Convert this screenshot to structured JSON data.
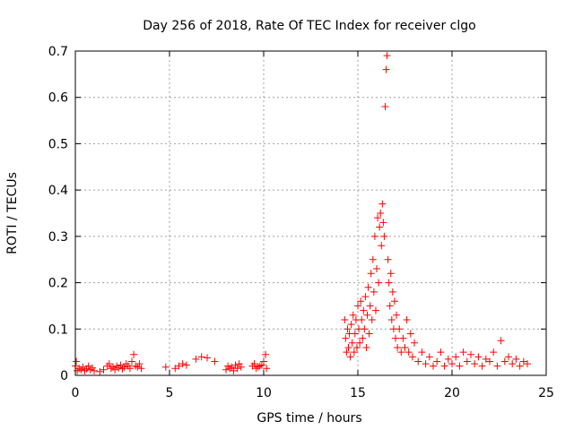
{
  "chart_data": {
    "type": "scatter",
    "title": "Day 256 of 2018, Rate Of TEC Index for receiver clgo",
    "xlabel": "GPS time / hours",
    "ylabel": "ROTI / TECUs",
    "xlim": [
      0,
      25
    ],
    "ylim": [
      0,
      0.7
    ],
    "x_ticks": [
      0,
      5,
      10,
      15,
      20,
      25
    ],
    "y_ticks": [
      0,
      0.1,
      0.2,
      0.3,
      0.4,
      0.5,
      0.6,
      0.7
    ],
    "x_tick_labels": [
      "0",
      "5",
      "10",
      "15",
      "20",
      "25"
    ],
    "y_tick_labels": [
      "0",
      "0.1",
      "0.2",
      "0.3",
      "0.4",
      "0.5",
      "0.6",
      "0.7"
    ],
    "grid": true,
    "marker": "+",
    "color": "#ff0000",
    "series": [
      {
        "name": "ROTI",
        "points": [
          [
            0.0,
            0.02
          ],
          [
            0.05,
            0.03
          ],
          [
            0.1,
            0.01
          ],
          [
            0.2,
            0.015
          ],
          [
            0.3,
            0.012
          ],
          [
            0.4,
            0.018
          ],
          [
            0.5,
            0.01
          ],
          [
            0.6,
            0.014
          ],
          [
            0.7,
            0.02
          ],
          [
            0.8,
            0.012
          ],
          [
            0.9,
            0.016
          ],
          [
            1.0,
            0.01
          ],
          [
            1.3,
            0.008
          ],
          [
            1.5,
            0.012
          ],
          [
            1.7,
            0.02
          ],
          [
            1.8,
            0.025
          ],
          [
            1.9,
            0.015
          ],
          [
            2.0,
            0.018
          ],
          [
            2.1,
            0.012
          ],
          [
            2.2,
            0.02
          ],
          [
            2.3,
            0.016
          ],
          [
            2.4,
            0.022
          ],
          [
            2.5,
            0.014
          ],
          [
            2.6,
            0.018
          ],
          [
            2.7,
            0.025
          ],
          [
            2.8,
            0.02
          ],
          [
            2.9,
            0.015
          ],
          [
            3.0,
            0.03
          ],
          [
            3.1,
            0.045
          ],
          [
            3.2,
            0.02
          ],
          [
            3.3,
            0.018
          ],
          [
            3.4,
            0.025
          ],
          [
            3.5,
            0.015
          ],
          [
            4.8,
            0.018
          ],
          [
            5.3,
            0.015
          ],
          [
            5.5,
            0.02
          ],
          [
            5.7,
            0.025
          ],
          [
            5.9,
            0.022
          ],
          [
            6.4,
            0.035
          ],
          [
            6.7,
            0.04
          ],
          [
            7.0,
            0.038
          ],
          [
            7.4,
            0.03
          ],
          [
            8.0,
            0.012
          ],
          [
            8.1,
            0.02
          ],
          [
            8.2,
            0.015
          ],
          [
            8.3,
            0.018
          ],
          [
            8.4,
            0.01
          ],
          [
            8.5,
            0.022
          ],
          [
            8.6,
            0.015
          ],
          [
            8.7,
            0.025
          ],
          [
            8.8,
            0.018
          ],
          [
            9.4,
            0.02
          ],
          [
            9.5,
            0.025
          ],
          [
            9.6,
            0.015
          ],
          [
            9.7,
            0.018
          ],
          [
            9.8,
            0.02
          ],
          [
            9.9,
            0.022
          ],
          [
            10.0,
            0.03
          ],
          [
            10.1,
            0.045
          ],
          [
            10.15,
            0.015
          ],
          [
            14.3,
            0.12
          ],
          [
            14.35,
            0.08
          ],
          [
            14.4,
            0.05
          ],
          [
            14.45,
            0.1
          ],
          [
            14.5,
            0.06
          ],
          [
            14.55,
            0.09
          ],
          [
            14.6,
            0.04
          ],
          [
            14.65,
            0.11
          ],
          [
            14.7,
            0.07
          ],
          [
            14.75,
            0.13
          ],
          [
            14.8,
            0.05
          ],
          [
            14.85,
            0.09
          ],
          [
            14.9,
            0.12
          ],
          [
            14.95,
            0.06
          ],
          [
            15.0,
            0.15
          ],
          [
            15.05,
            0.1
          ],
          [
            15.1,
            0.07
          ],
          [
            15.15,
            0.16
          ],
          [
            15.2,
            0.12
          ],
          [
            15.25,
            0.08
          ],
          [
            15.3,
            0.14
          ],
          [
            15.35,
            0.1
          ],
          [
            15.4,
            0.17
          ],
          [
            15.45,
            0.06
          ],
          [
            15.5,
            0.13
          ],
          [
            15.55,
            0.19
          ],
          [
            15.6,
            0.09
          ],
          [
            15.65,
            0.15
          ],
          [
            15.7,
            0.22
          ],
          [
            15.75,
            0.12
          ],
          [
            15.8,
            0.25
          ],
          [
            15.85,
            0.18
          ],
          [
            15.9,
            0.3
          ],
          [
            15.95,
            0.14
          ],
          [
            16.0,
            0.23
          ],
          [
            16.05,
            0.34
          ],
          [
            16.1,
            0.2
          ],
          [
            16.15,
            0.32
          ],
          [
            16.2,
            0.35
          ],
          [
            16.25,
            0.28
          ],
          [
            16.3,
            0.37
          ],
          [
            16.35,
            0.33
          ],
          [
            16.4,
            0.3
          ],
          [
            16.45,
            0.58
          ],
          [
            16.5,
            0.66
          ],
          [
            16.55,
            0.69
          ],
          [
            16.6,
            0.25
          ],
          [
            16.65,
            0.2
          ],
          [
            16.7,
            0.15
          ],
          [
            16.75,
            0.22
          ],
          [
            16.8,
            0.12
          ],
          [
            16.85,
            0.18
          ],
          [
            16.9,
            0.1
          ],
          [
            16.95,
            0.16
          ],
          [
            17.0,
            0.08
          ],
          [
            17.05,
            0.13
          ],
          [
            17.1,
            0.06
          ],
          [
            17.2,
            0.1
          ],
          [
            17.3,
            0.05
          ],
          [
            17.4,
            0.08
          ],
          [
            17.5,
            0.06
          ],
          [
            17.6,
            0.12
          ],
          [
            17.7,
            0.05
          ],
          [
            17.8,
            0.09
          ],
          [
            17.9,
            0.04
          ],
          [
            18.0,
            0.07
          ],
          [
            18.2,
            0.03
          ],
          [
            18.4,
            0.05
          ],
          [
            18.6,
            0.025
          ],
          [
            18.8,
            0.04
          ],
          [
            19.0,
            0.02
          ],
          [
            19.2,
            0.03
          ],
          [
            19.4,
            0.05
          ],
          [
            19.6,
            0.02
          ],
          [
            19.8,
            0.035
          ],
          [
            20.0,
            0.025
          ],
          [
            20.2,
            0.04
          ],
          [
            20.4,
            0.02
          ],
          [
            20.6,
            0.05
          ],
          [
            20.8,
            0.03
          ],
          [
            21.0,
            0.045
          ],
          [
            21.2,
            0.025
          ],
          [
            21.4,
            0.04
          ],
          [
            21.6,
            0.02
          ],
          [
            21.8,
            0.035
          ],
          [
            22.0,
            0.03
          ],
          [
            22.2,
            0.05
          ],
          [
            22.4,
            0.02
          ],
          [
            22.6,
            0.075
          ],
          [
            22.8,
            0.03
          ],
          [
            23.0,
            0.04
          ],
          [
            23.2,
            0.025
          ],
          [
            23.4,
            0.035
          ],
          [
            23.6,
            0.02
          ],
          [
            23.8,
            0.03
          ],
          [
            24.0,
            0.025
          ]
        ]
      }
    ]
  }
}
